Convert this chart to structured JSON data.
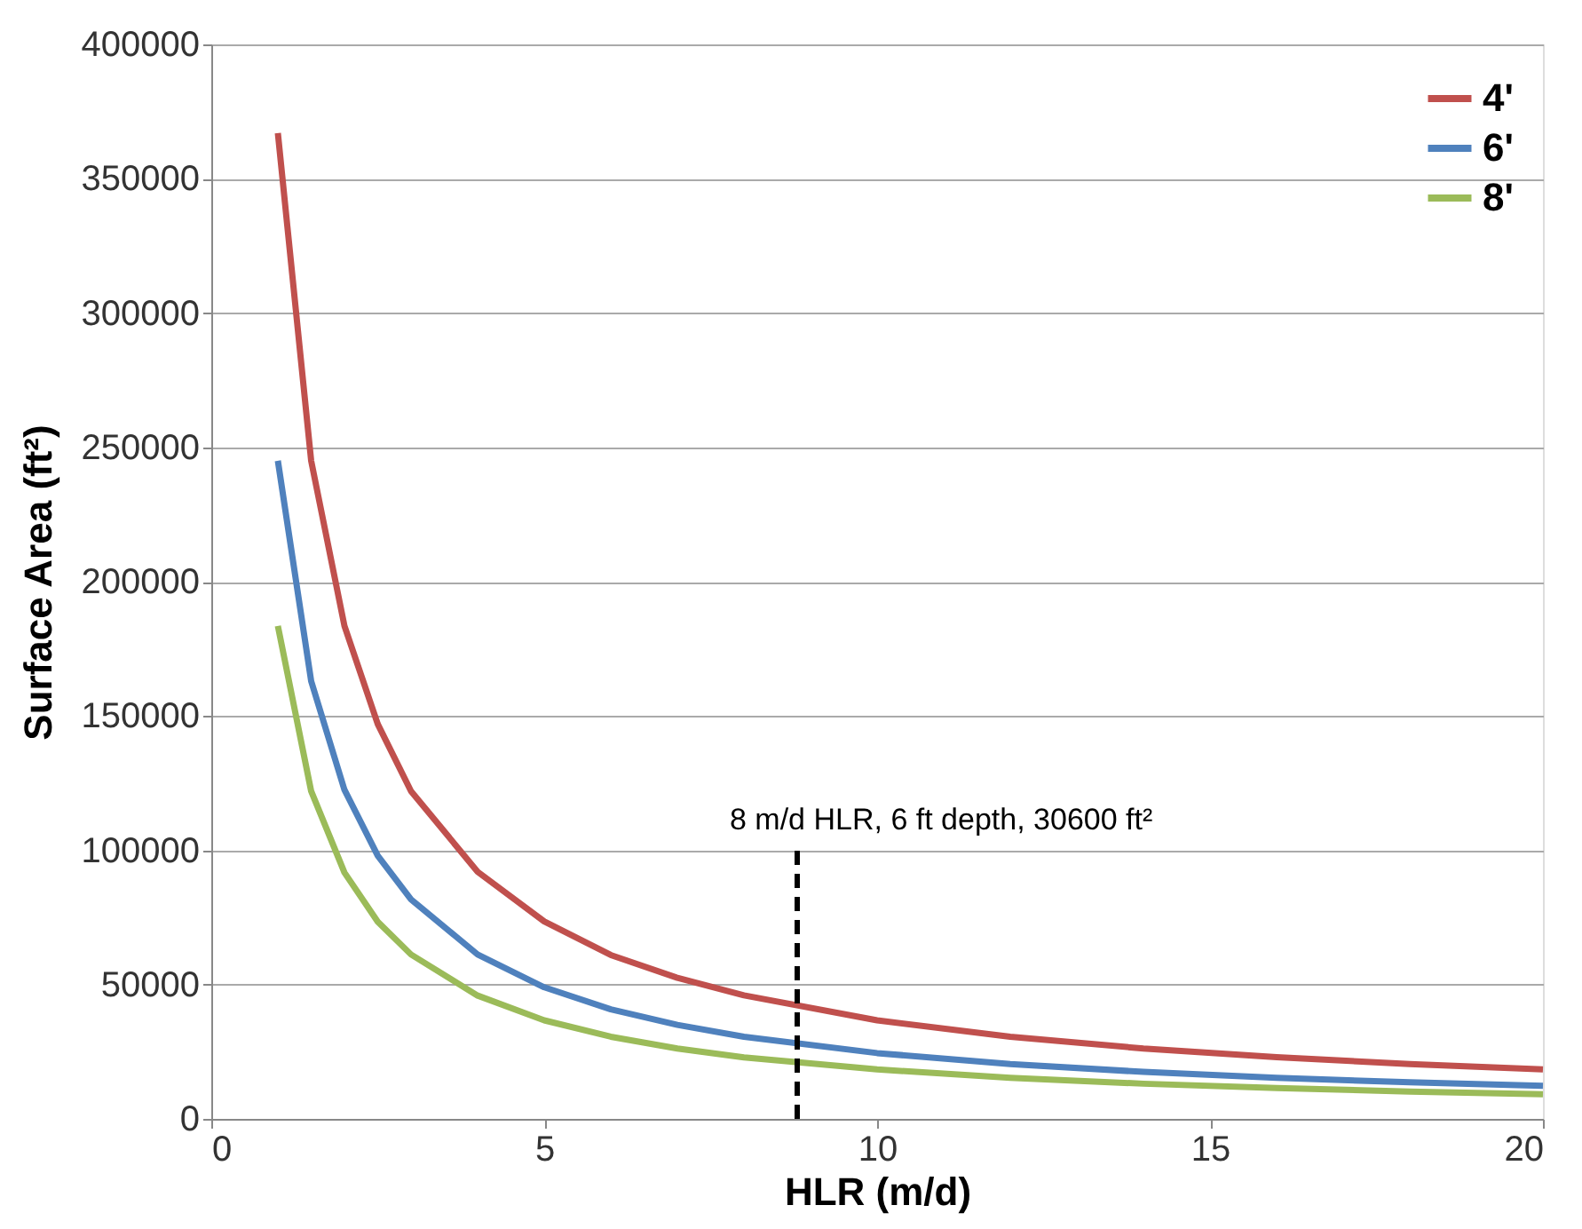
{
  "chart_data": {
    "type": "line",
    "xlabel": "HLR (m/d)",
    "ylabel": "Surface Area (ft²)",
    "x": [
      1,
      1.5,
      2,
      2.5,
      3,
      4,
      5,
      6,
      7,
      8,
      10,
      12,
      14,
      16,
      18,
      20
    ],
    "series": [
      {
        "name": "4'",
        "color": "#c0504d",
        "values": [
          367000,
          245000,
          183500,
          147000,
          122000,
          92000,
          73500,
          61000,
          52500,
          46000,
          36700,
          30600,
          26200,
          23000,
          20400,
          18400
        ]
      },
      {
        "name": "6'",
        "color": "#4f81bd",
        "values": [
          245000,
          163000,
          122500,
          98000,
          81700,
          61200,
          49000,
          40800,
          35000,
          30600,
          24500,
          20400,
          17500,
          15300,
          13600,
          12300
        ]
      },
      {
        "name": "8'",
        "color": "#9bbb59",
        "values": [
          183500,
          122000,
          91700,
          73400,
          61200,
          45900,
          36700,
          30600,
          26200,
          22900,
          18400,
          15300,
          13100,
          11500,
          10200,
          9200
        ]
      }
    ],
    "xlim": [
      0,
      20
    ],
    "xticks": [
      0,
      5,
      10,
      15,
      20
    ],
    "ylim": [
      0,
      400000
    ],
    "yticks": [
      0,
      50000,
      100000,
      150000,
      200000,
      250000,
      300000,
      350000,
      400000
    ],
    "grid": "y",
    "legend": "top right",
    "marker": "none",
    "line_style": "solid",
    "ref_lines": [
      {
        "axis": "x",
        "value": 8.8,
        "color": "#000000",
        "line_style": "dashed"
      }
    ],
    "annotations": [
      {
        "text": "8 m/d HLR, 6 ft depth, 30600 ft²",
        "x": 8.8,
        "y": 100000
      }
    ]
  }
}
